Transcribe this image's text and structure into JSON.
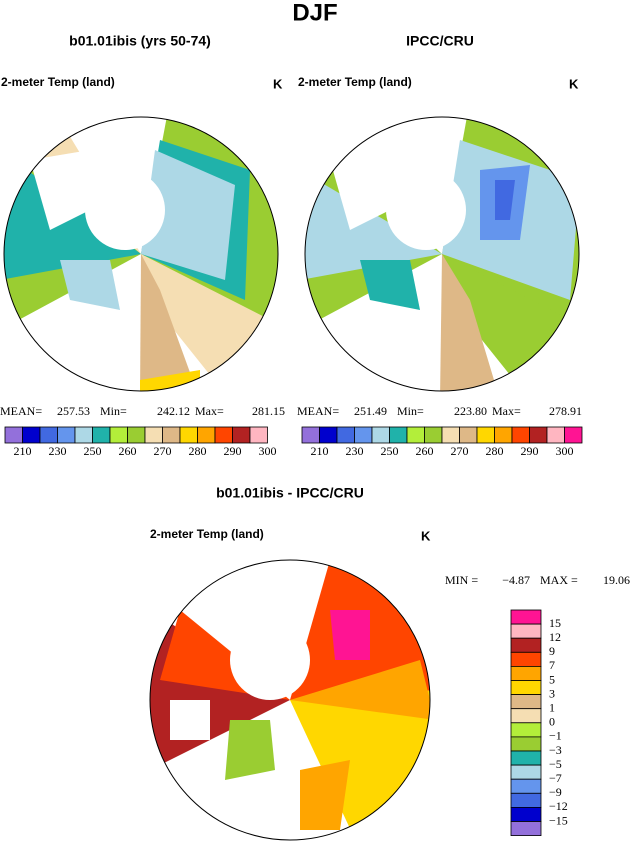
{
  "title": "DJF",
  "panels": [
    {
      "title": "b01.01ibis (yrs 50-74)",
      "variable": "2-meter Temp (land)",
      "units": "K",
      "stats": [
        {
          "label": "MEAN=",
          "value": "257.53"
        },
        {
          "label": "Min=",
          "value": "242.12"
        },
        {
          "label": "Max=",
          "value": "281.15"
        }
      ],
      "colorbar": {
        "colors": [
          "#9370db",
          "#0000cd",
          "#4169e1",
          "#6495ed",
          "#add8e6",
          "#20b2aa",
          "#b3ee3a",
          "#9acd32",
          "#f5deb3",
          "#deb887",
          "#ffd700",
          "#ffa500",
          "#ff4500",
          "#b22222",
          "#ffb6c1"
        ],
        "labels": [
          "210",
          "230",
          "250",
          "260",
          "270",
          "280",
          "290",
          "300"
        ]
      }
    },
    {
      "title": "IPCC/CRU",
      "variable": "2-meter Temp (land)",
      "units": "K",
      "stats": [
        {
          "label": "MEAN=",
          "value": "251.49"
        },
        {
          "label": "Min=",
          "value": "223.80"
        },
        {
          "label": "Max=",
          "value": "278.91"
        }
      ],
      "colorbar": {
        "colors": [
          "#9370db",
          "#0000cd",
          "#4169e1",
          "#6495ed",
          "#add8e6",
          "#20b2aa",
          "#b3ee3a",
          "#9acd32",
          "#f5deb3",
          "#deb887",
          "#ffd700",
          "#ffa500",
          "#ff4500",
          "#b22222",
          "#ffb6c1",
          "#ff1493"
        ],
        "labels": [
          "210",
          "230",
          "250",
          "260",
          "270",
          "280",
          "290",
          "300"
        ]
      }
    }
  ],
  "difference": {
    "title": "b01.01ibis - IPCC/CRU",
    "variable": "2-meter Temp (land)",
    "units": "K",
    "stats": [
      {
        "label": "MIN =",
        "value": "−4.87"
      },
      {
        "label": "MAX =",
        "value": "19.06"
      }
    ],
    "colorbar": {
      "colors": [
        "#ff1493",
        "#ffb6c1",
        "#b22222",
        "#ff4500",
        "#ffa500",
        "#ffd700",
        "#deb887",
        "#f5deb3",
        "#b3ee3a",
        "#9acd32",
        "#20b2aa",
        "#add8e6",
        "#6495ed",
        "#4169e1",
        "#0000cd",
        "#9370db"
      ],
      "labels": [
        "15",
        "12",
        "9",
        "7",
        "5",
        "3",
        "1",
        "0",
        "−1",
        "−3",
        "−5",
        "−7",
        "−9",
        "−12",
        "−15"
      ]
    }
  }
}
